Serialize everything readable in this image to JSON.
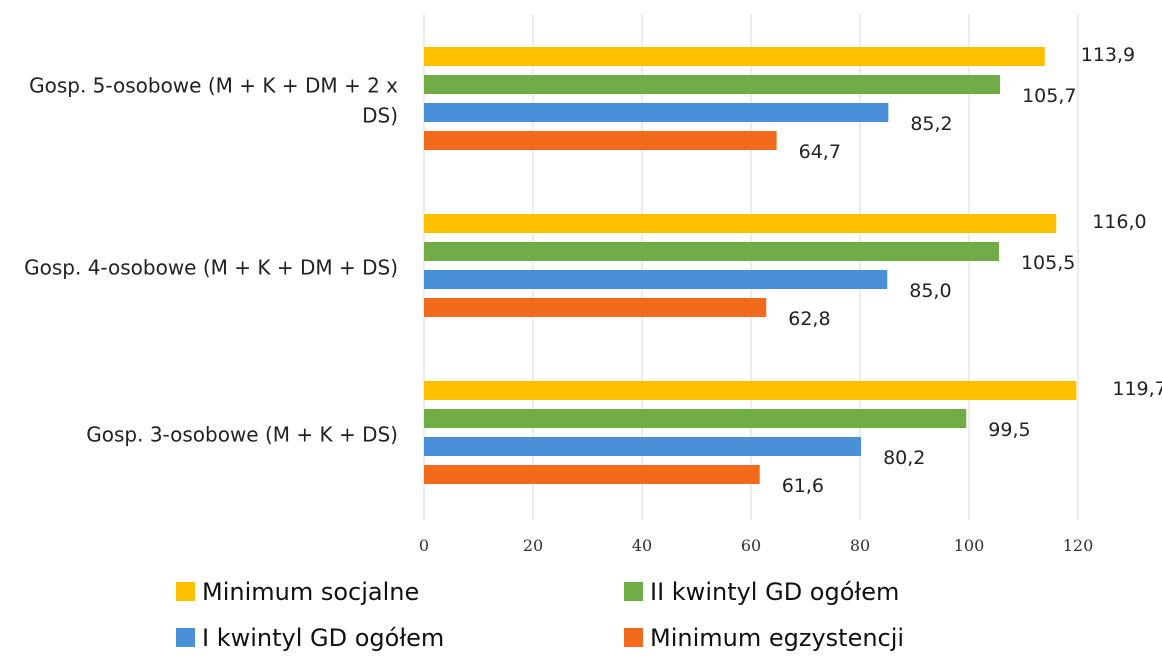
{
  "chart_data": {
    "type": "bar",
    "orientation": "horizontal",
    "title": "",
    "xlabel": "",
    "ylabel": "",
    "xlim": [
      0,
      120
    ],
    "xticks": [
      0,
      20,
      40,
      60,
      80,
      100,
      120
    ],
    "grid": true,
    "legend_position": "bottom",
    "categories": [
      "Gosp. 5-osobowe (M + K + DM + 2 x DS)",
      "Gosp. 4-osobowe (M + K + DM + DS)",
      "Gosp. 3-osobowe (M + K + DS)"
    ],
    "category_label_lines": [
      [
        "Gosp. 5-osobowe (M + K + DM + 2 x",
        "DS)"
      ],
      [
        "Gosp. 4-osobowe (M + K + DM + DS)"
      ],
      [
        "Gosp. 3-osobowe (M + K + DS)"
      ]
    ],
    "series": [
      {
        "name": "Minimum socjalne",
        "color": "#FFC000",
        "values": [
          113.9,
          116.0,
          119.7
        ],
        "labels": [
          "113,9",
          "116,0",
          "119,7"
        ]
      },
      {
        "name": "II kwintyl GD ogółem",
        "color": "#70AD47",
        "values": [
          105.7,
          105.5,
          99.5
        ],
        "labels": [
          "105,7",
          "105,5",
          "99,5"
        ]
      },
      {
        "name": "I kwintyl GD ogółem",
        "color": "#4A90D9",
        "values": [
          85.2,
          85.0,
          80.2
        ],
        "labels": [
          "85,2",
          "85,0",
          "80,2"
        ]
      },
      {
        "name": "Minimum egzystencji",
        "color": "#F26B1D",
        "values": [
          64.7,
          62.8,
          61.6
        ],
        "labels": [
          "64,7",
          "62,8",
          "61,6"
        ]
      }
    ]
  }
}
